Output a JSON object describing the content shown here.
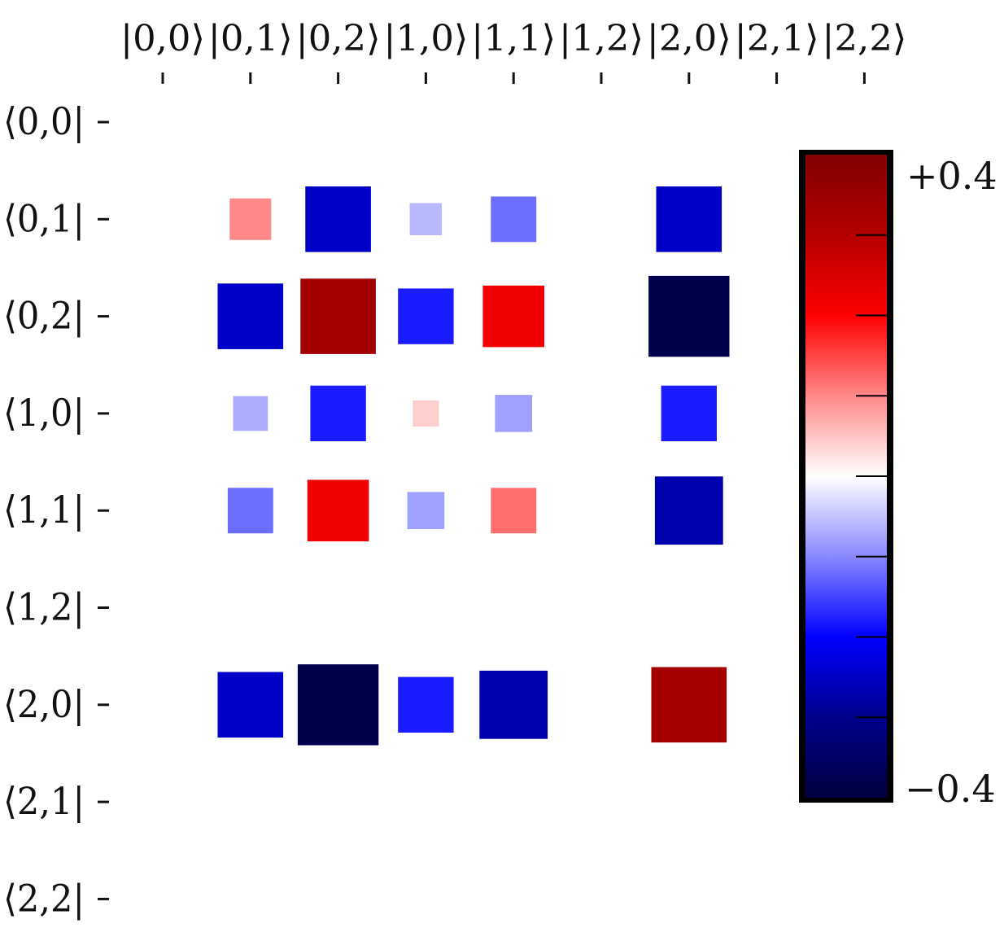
{
  "chart_data": {
    "type": "heatmap",
    "subtype": "hinton",
    "title": "",
    "xlabel": "",
    "ylabel": "",
    "x_tick_labels": [
      "|0,0⟩",
      "|0,1⟩",
      "|0,2⟩",
      "|1,0⟩",
      "|1,1⟩",
      "|1,2⟩",
      "|2,0⟩",
      "|2,1⟩",
      "|2,2⟩"
    ],
    "y_tick_labels": [
      "⟨0,0|",
      "⟨0,1|",
      "⟨0,2|",
      "⟨1,0|",
      "⟨1,1|",
      "⟨1,2|",
      "⟨2,0|",
      "⟨2,1|",
      "⟨2,2|"
    ],
    "x_axis_position": "top",
    "vmin": -0.4,
    "vmax": 0.4,
    "colormap": "bwr (navy-blue-white-red-darkred)",
    "colorbar": {
      "position": "right",
      "max_label": "+0.4",
      "min_label": "−0.4",
      "minor_tick_count": 7,
      "colors": [
        "#000040",
        "#00008c",
        "#0000ff",
        "#8888ff",
        "#ffffff",
        "#ff8888",
        "#ff0000",
        "#b40000",
        "#800000"
      ]
    },
    "cells": [
      {
        "row": 1,
        "col": 1,
        "value": 0.1
      },
      {
        "row": 1,
        "col": 2,
        "value": -0.25
      },
      {
        "row": 1,
        "col": 3,
        "value": -0.06
      },
      {
        "row": 1,
        "col": 4,
        "value": -0.12
      },
      {
        "row": 1,
        "col": 6,
        "value": -0.25
      },
      {
        "row": 2,
        "col": 1,
        "value": -0.25
      },
      {
        "row": 2,
        "col": 2,
        "value": 0.33
      },
      {
        "row": 2,
        "col": 3,
        "value": -0.18
      },
      {
        "row": 2,
        "col": 4,
        "value": 0.22
      },
      {
        "row": 2,
        "col": 6,
        "value": -0.38
      },
      {
        "row": 3,
        "col": 1,
        "value": -0.07
      },
      {
        "row": 3,
        "col": 2,
        "value": -0.18
      },
      {
        "row": 3,
        "col": 3,
        "value": 0.04
      },
      {
        "row": 3,
        "col": 4,
        "value": -0.08
      },
      {
        "row": 3,
        "col": 6,
        "value": -0.18
      },
      {
        "row": 4,
        "col": 1,
        "value": -0.12
      },
      {
        "row": 4,
        "col": 2,
        "value": 0.22
      },
      {
        "row": 4,
        "col": 3,
        "value": -0.08
      },
      {
        "row": 4,
        "col": 4,
        "value": 0.12
      },
      {
        "row": 4,
        "col": 6,
        "value": -0.27
      },
      {
        "row": 6,
        "col": 1,
        "value": -0.25
      },
      {
        "row": 6,
        "col": 2,
        "value": -0.38
      },
      {
        "row": 6,
        "col": 3,
        "value": -0.18
      },
      {
        "row": 6,
        "col": 4,
        "value": -0.27
      },
      {
        "row": 6,
        "col": 6,
        "value": 0.33
      }
    ]
  }
}
